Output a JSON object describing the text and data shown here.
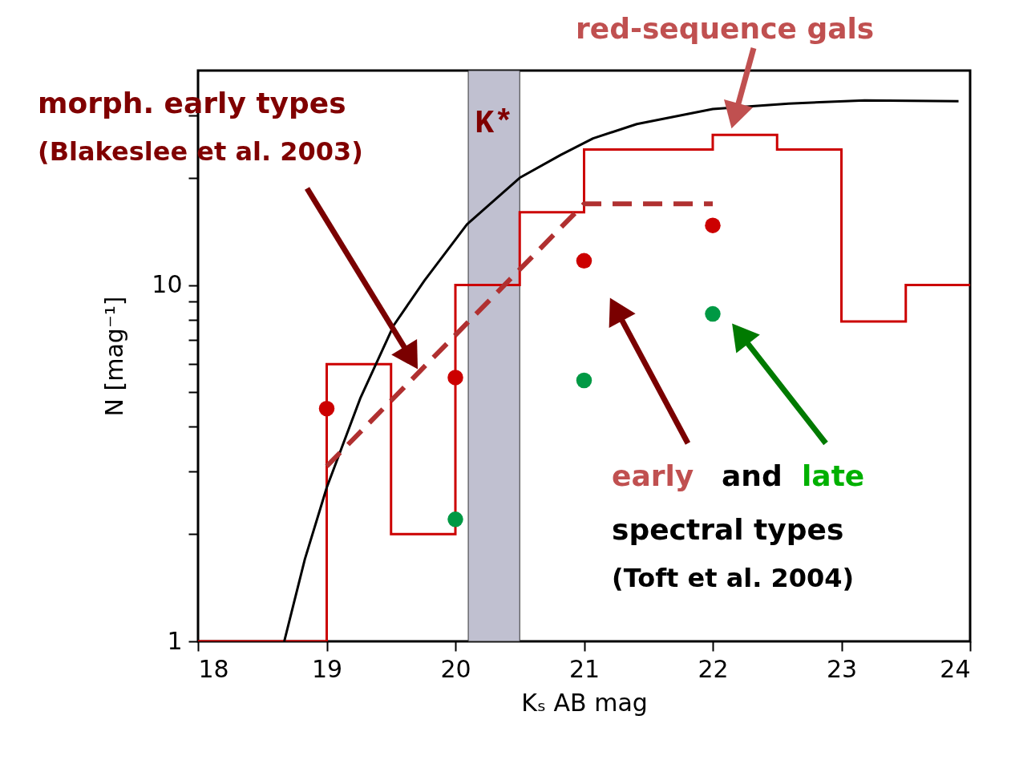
{
  "chart_data": {
    "type": "histogram",
    "xlabel": "Kₛ AB mag",
    "ylabel": "N [mag⁻¹]",
    "bins": [
      18,
      19,
      19.5,
      20,
      20.5,
      21,
      22,
      22.5,
      23,
      23.5,
      24
    ],
    "values": [
      1,
      6,
      2,
      10,
      16,
      24,
      26.4,
      24,
      7.9,
      10
    ],
    "color": "#cc0000",
    "series": [
      {
        "type": "line",
        "color": "#000000",
        "x": [
          18.67,
          18.83,
          19,
          19.26,
          19.52,
          19.76,
          20.09,
          20.5,
          20.82,
          21.07,
          21.41,
          22,
          22.59,
          23.18,
          23.91
        ],
        "values": [
          1,
          1.7,
          2.7,
          4.8,
          7.7,
          10.3,
          14.8,
          20,
          23.2,
          25.8,
          28.3,
          31.2,
          32.3,
          33,
          32.8
        ]
      },
      {
        "type": "line",
        "color": "#b03030",
        "line_style": "dashed",
        "x": [
          19,
          21,
          22
        ],
        "values": [
          3.1,
          16.9,
          16.9
        ]
      },
      {
        "type": "scatter",
        "color": "#cc0000",
        "marker": "circle",
        "x": [
          19,
          20,
          21,
          22
        ],
        "values": [
          4.5,
          5.5,
          11.7,
          14.7
        ]
      },
      {
        "type": "scatter",
        "color": "#009944",
        "marker": "circle",
        "x": [
          20,
          21,
          22
        ],
        "values": [
          2.2,
          5.4,
          8.3
        ]
      }
    ],
    "xlim": [
      18,
      24
    ],
    "ylim": [
      1,
      40
    ],
    "log": "y",
    "xticks": [
      18,
      19,
      20,
      21,
      22,
      23,
      24
    ],
    "yticks": [
      1,
      {
        "value": 2,
        "label": null
      },
      {
        "value": 3,
        "label": null
      },
      {
        "value": 4,
        "label": null
      },
      {
        "value": 5,
        "label": null
      },
      {
        "value": 6,
        "label": null
      },
      {
        "value": 7,
        "label": null
      },
      {
        "value": 8,
        "label": null
      },
      {
        "value": 9,
        "label": null
      },
      10,
      {
        "value": 20,
        "label": null
      },
      {
        "value": 30,
        "label": null
      }
    ],
    "bands": [
      {
        "axis": "x",
        "from": 20.1,
        "to": 20.5,
        "label": "K*",
        "color": "#c0c0d0"
      }
    ],
    "annotations": [
      "morph. early types",
      "(Blakeslee et al. 2003)",
      "red-sequence gals",
      "early",
      "and",
      "late",
      "spectral types",
      "(Toft et al. 2004)"
    ],
    "grid": false
  }
}
